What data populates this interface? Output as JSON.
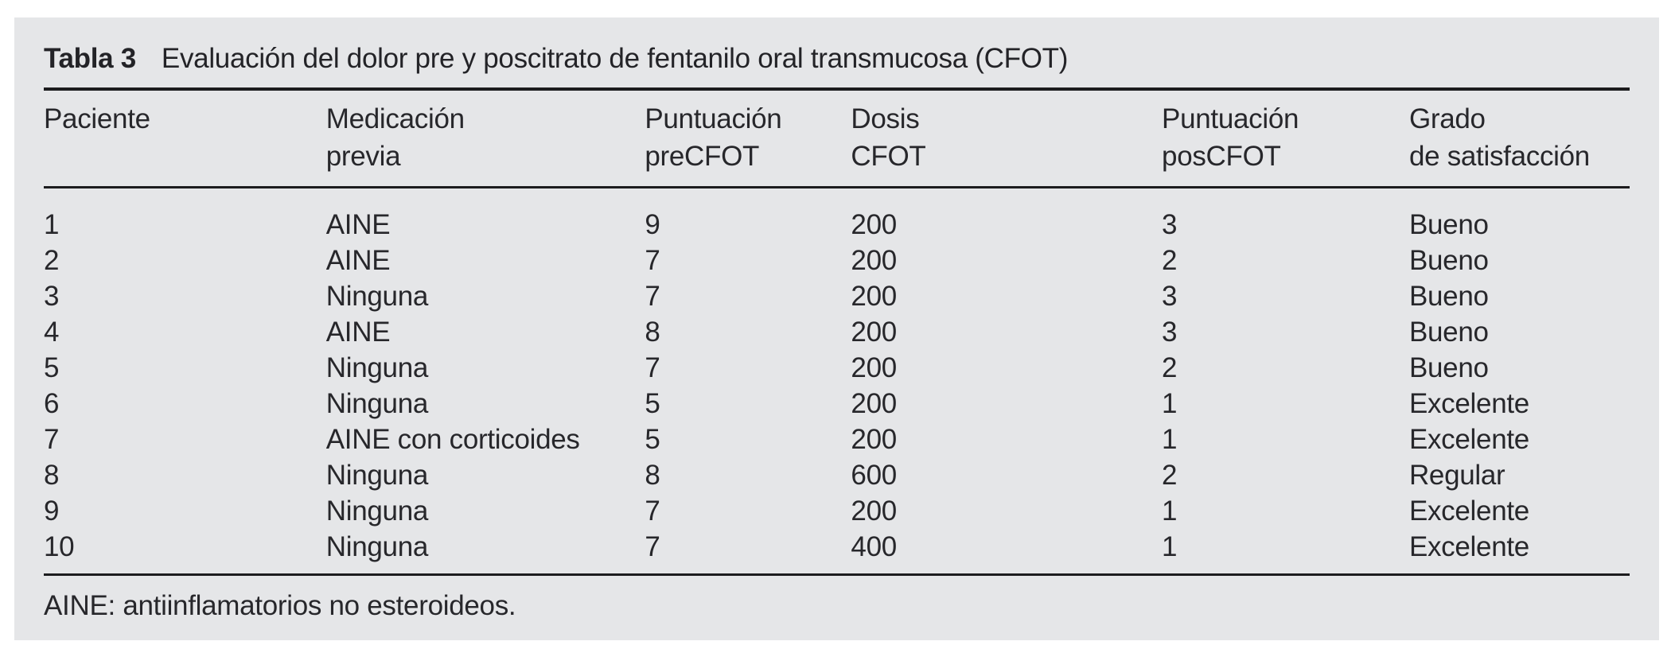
{
  "page": {
    "background": "#ffffff",
    "panel_background": "#e5e6e8",
    "text_color": "#27272b",
    "rule_color": "#1c1c1e"
  },
  "table": {
    "label": "Tabla 3",
    "title": "Evaluación del dolor pre y poscitrato de fentanilo oral transmucosa (CFOT)",
    "columns": [
      {
        "line1": "Paciente",
        "line2": ""
      },
      {
        "line1": "Medicación",
        "line2": "previa"
      },
      {
        "line1": "Puntuación",
        "line2": "preCFOT"
      },
      {
        "line1": "Dosis",
        "line2": "CFOT"
      },
      {
        "line1": "Puntuación",
        "line2": "posCFOT"
      },
      {
        "line1": "Grado",
        "line2": "de satisfacción"
      }
    ],
    "rows": [
      [
        "1",
        "AINE",
        "9",
        "200",
        "3",
        "Bueno"
      ],
      [
        "2",
        "AINE",
        "7",
        "200",
        "2",
        "Bueno"
      ],
      [
        "3",
        "Ninguna",
        "7",
        "200",
        "3",
        "Bueno"
      ],
      [
        "4",
        "AINE",
        "8",
        "200",
        "3",
        "Bueno"
      ],
      [
        "5",
        "Ninguna",
        "7",
        "200",
        "2",
        "Bueno"
      ],
      [
        "6",
        "Ninguna",
        "5",
        "200",
        "1",
        "Excelente"
      ],
      [
        "7",
        "AINE con corticoides",
        "5",
        "200",
        "1",
        "Excelente"
      ],
      [
        "8",
        "Ninguna",
        "8",
        "600",
        "2",
        "Regular"
      ],
      [
        "9",
        "Ninguna",
        "7",
        "200",
        "1",
        "Excelente"
      ],
      [
        "10",
        "Ninguna",
        "7",
        "400",
        "1",
        "Excelente"
      ]
    ],
    "footnote": "AINE: antiinflamatorios no esteroideos."
  }
}
